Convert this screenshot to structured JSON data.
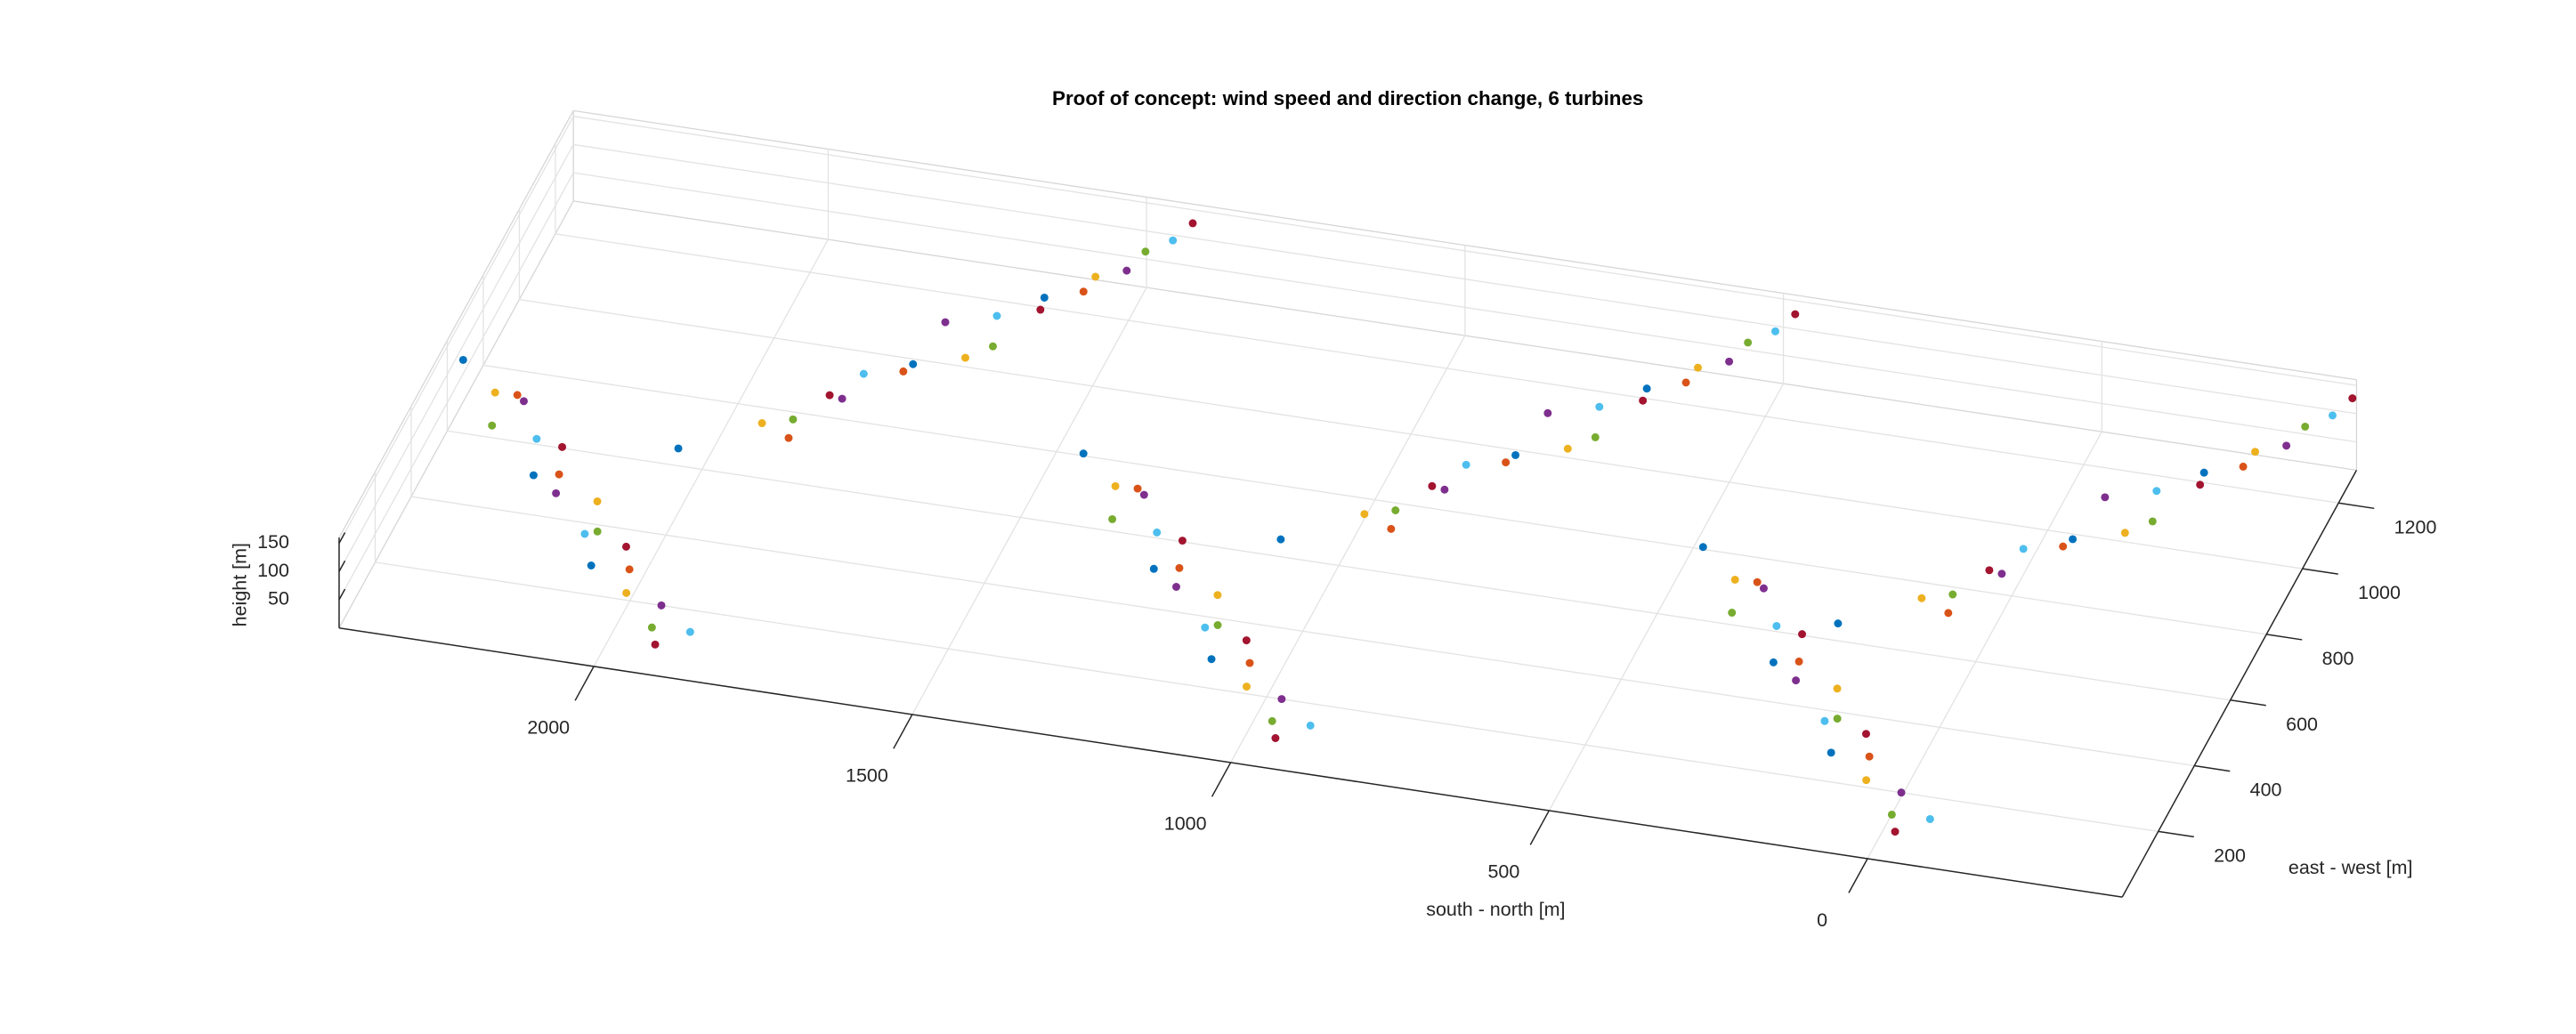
{
  "chart_data": {
    "type": "scatter3d",
    "title": "Proof of concept: wind speed and direction change, 6 turbines",
    "xlabel": "south - north [m]",
    "ylabel": "east - west [m]",
    "zlabel": "height [m]",
    "xlim": [
      -400,
      2400
    ],
    "ylim": [
      0,
      1300
    ],
    "zlim": [
      0,
      160
    ],
    "xticks": [
      0,
      500,
      1000,
      1500,
      2000
    ],
    "yticks": [
      200,
      400,
      600,
      800,
      1000,
      1200
    ],
    "zticks": [
      50,
      100,
      150
    ],
    "grid": true,
    "series": [
      {
        "color": "#0072BD",
        "x": [
          2375,
          2209,
          2063,
          2006,
          1730,
          1588,
          1401,
          1235,
          1089,
          1060,
          784,
          642,
          428,
          262,
          116,
          185,
          -91,
          -233
        ],
        "y": [
          600,
          404,
          208,
          490,
          817,
          1044,
          600,
          404,
          208,
          490,
          817,
          1044,
          600,
          404,
          208,
          490,
          817,
          1044
        ],
        "z": [
          130,
          68,
          47,
          100,
          106,
          116,
          130,
          68,
          47,
          100,
          106,
          116,
          130,
          68,
          47,
          100,
          106,
          116
        ]
      },
      {
        "color": "#D95319",
        "x": [
          2282,
          2161,
          1995,
          1871,
          1741,
          1541,
          1308,
          1187,
          1021,
          925,
          795,
          595,
          335,
          214,
          48,
          50,
          -80,
          -280
        ],
        "y": [
          572,
          376,
          180,
          625,
          802,
          1095,
          572,
          376,
          180,
          625,
          802,
          1095,
          572,
          376,
          180,
          625,
          802,
          1095
        ],
        "z": [
          100,
          94,
          68,
          63,
          100,
          105,
          100,
          94,
          68,
          63,
          100,
          105,
          100,
          94,
          68,
          63,
          100,
          105
        ]
      },
      {
        "color": "#EDB120",
        "x": [
          2309,
          2093,
          1992,
          1912,
          1666,
          1531,
          1335,
          1119,
          1018,
          966,
          720,
          585,
          362,
          146,
          45,
          91,
          -155,
          -290
        ],
        "y": [
          544,
          348,
          152,
          622,
          881,
          1126,
          544,
          348,
          152,
          622,
          881,
          1126,
          544,
          348,
          152,
          622,
          881,
          1126
        ],
        "z": [
          116,
          74,
          43,
          84,
          91,
          115,
          116,
          74,
          43,
          84,
          91,
          115,
          116,
          74,
          43,
          84,
          91,
          115
        ]
      },
      {
        "color": "#7E2F8E",
        "x": [
          2256,
          2150,
          1929,
          1804,
          1713,
          1491,
          1282,
          1176,
          955,
          858,
          767,
          545,
          309,
          203,
          -18,
          -17,
          -108,
          -330
        ],
        "y": [
          516,
          320,
          124,
          685,
          936,
          1158,
          516,
          320,
          124,
          685,
          936,
          1158,
          516,
          320,
          124,
          685,
          936,
          1158
        ],
        "z": [
          126,
          95,
          48,
          109,
          114,
          114,
          126,
          95,
          48,
          109,
          114,
          114,
          126,
          95,
          48,
          109,
          114,
          114
        ]
      },
      {
        "color": "#77AC30",
        "x": [
          2298,
          2077,
          1936,
          1874,
          1636,
          1474,
          1324,
          1103,
          962,
          928,
          690,
          528,
          351,
          130,
          -11,
          53,
          -185,
          -347
        ],
        "y": [
          488,
          292,
          96,
          660,
          928,
          1202,
          488,
          292,
          96,
          660,
          928,
          1202,
          488,
          292,
          96,
          660,
          928,
          1202
        ],
        "z": [
          92,
          56,
          24,
          75,
          89,
          125,
          92,
          56,
          24,
          75,
          89,
          125,
          92,
          56,
          24,
          75,
          89,
          125
        ]
      },
      {
        "color": "#4DBEEE",
        "x": [
          2220,
          2089,
          1868,
          1797,
          1645,
          1440,
          1246,
          1115,
          894,
          851,
          699,
          494,
          273,
          142,
          -79,
          -24,
          -176,
          -381
        ],
        "y": [
          460,
          264,
          68,
          780,
          982,
          1234,
          460,
          264,
          68,
          780,
          982,
          1234,
          460,
          264,
          68,
          780,
          982,
          1234
        ],
        "z": [
          98,
          66,
          44,
          99,
          110,
          132,
          98,
          66,
          44,
          99,
          110,
          132,
          98,
          66,
          44,
          99,
          110,
          132
        ]
      },
      {
        "color": "#A2142F",
        "x": [
          2172,
          2016,
          1915,
          1842,
          1590,
          1419,
          1198,
          1042,
          941,
          896,
          644,
          473,
          225,
          69,
          -32,
          21,
          -231,
          -402
        ],
        "y": [
          432,
          236,
          40,
          750,
          1029,
          1270,
          432,
          236,
          40,
          750,
          1029,
          1270,
          432,
          236,
          40,
          750,
          1029,
          1270
        ],
        "z": [
          108,
          72,
          30,
          71,
          103,
          145,
          108,
          72,
          30,
          71,
          103,
          145,
          108,
          72,
          30,
          71,
          103,
          145
        ]
      }
    ]
  }
}
